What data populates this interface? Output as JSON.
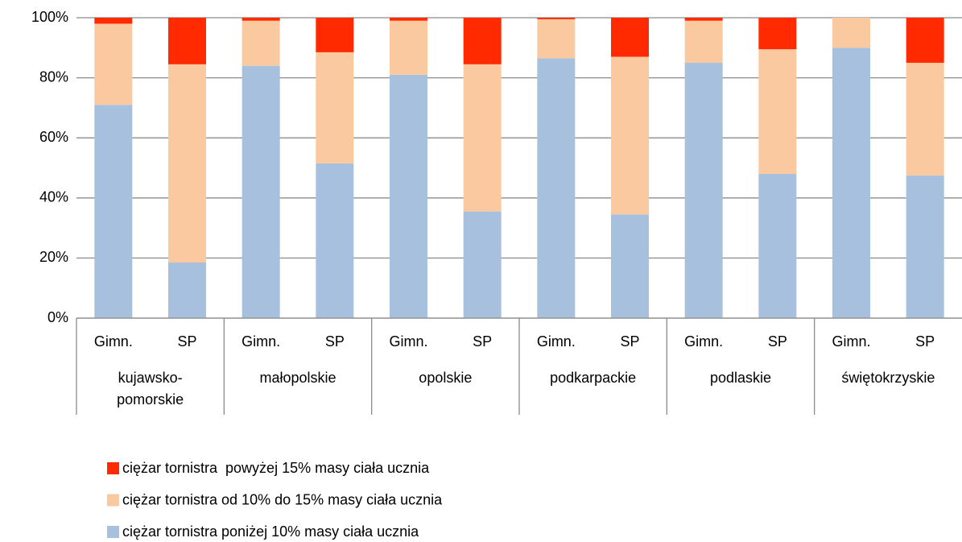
{
  "chart_data": {
    "type": "stacked_bar",
    "categories": [
      "Gimn.",
      "SP",
      "Gimn.",
      "SP",
      "Gimn.",
      "SP",
      "Gimn.",
      "SP",
      "Gimn.",
      "SP",
      "Gimn.",
      "SP"
    ],
    "groups": [
      "kujawsko-pomorskie",
      "małopolskie",
      "opolskie",
      "podkarpackie",
      "podlaskie",
      "świętokrzyskie"
    ],
    "series": [
      {
        "name": "ciężar tornistra poniżej 10% masy ciała ucznia",
        "color": "#a7c0de",
        "values": [
          71,
          18.5,
          84,
          51.5,
          81,
          35.5,
          86.5,
          34.5,
          85,
          48,
          90,
          47.5
        ]
      },
      {
        "name": "ciężar tornistra od 10% do 15% masy ciała ucznia",
        "color": "#fac9a0",
        "values": [
          27,
          66,
          15,
          37,
          18,
          49,
          13,
          52.5,
          14,
          41.5,
          10,
          37.5
        ]
      },
      {
        "name": "ciężar tornistra  powyżej 15% masy ciała ucznia",
        "color": "#ff2a00",
        "values": [
          2,
          15.5,
          1,
          11.5,
          1,
          15.5,
          0.5,
          13,
          1,
          10.5,
          0,
          15
        ]
      }
    ],
    "ylim": [
      0,
      100
    ],
    "yticks": [
      {
        "value": 0,
        "label": "0%"
      },
      {
        "value": 20,
        "label": "20%"
      },
      {
        "value": 40,
        "label": "40%"
      },
      {
        "value": 60,
        "label": "60%"
      },
      {
        "value": 80,
        "label": "80%"
      },
      {
        "value": 100,
        "label": "100%"
      }
    ],
    "grid": true
  }
}
